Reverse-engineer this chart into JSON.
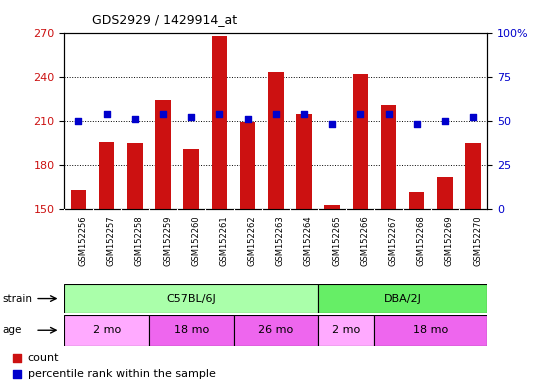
{
  "title": "GDS2929 / 1429914_at",
  "samples": [
    "GSM152256",
    "GSM152257",
    "GSM152258",
    "GSM152259",
    "GSM152260",
    "GSM152261",
    "GSM152262",
    "GSM152263",
    "GSM152264",
    "GSM152265",
    "GSM152266",
    "GSM152267",
    "GSM152268",
    "GSM152269",
    "GSM152270"
  ],
  "counts": [
    163,
    196,
    195,
    224,
    191,
    268,
    209,
    243,
    215,
    153,
    242,
    221,
    162,
    172,
    195
  ],
  "percentile_ranks": [
    50,
    54,
    51,
    54,
    52,
    54,
    51,
    54,
    54,
    48,
    54,
    54,
    48,
    50,
    52
  ],
  "ymin": 150,
  "ymax": 270,
  "yticks": [
    150,
    180,
    210,
    240,
    270
  ],
  "right_yticks": [
    0,
    25,
    50,
    75,
    100
  ],
  "strain_groups": [
    {
      "label": "C57BL/6J",
      "start": 0,
      "end": 9,
      "color": "#aaffaa"
    },
    {
      "label": "DBA/2J",
      "start": 9,
      "end": 15,
      "color": "#66ee66"
    }
  ],
  "age_groups": [
    {
      "label": "2 mo",
      "start": 0,
      "end": 3,
      "color": "#ffaaff"
    },
    {
      "label": "18 mo",
      "start": 3,
      "end": 6,
      "color": "#ee66ee"
    },
    {
      "label": "26 mo",
      "start": 6,
      "end": 9,
      "color": "#ee66ee"
    },
    {
      "label": "2 mo",
      "start": 9,
      "end": 11,
      "color": "#ffaaff"
    },
    {
      "label": "18 mo",
      "start": 11,
      "end": 15,
      "color": "#ee66ee"
    }
  ],
  "bar_color": "#cc1111",
  "dot_color": "#0000cc",
  "plot_bg_color": "#ffffff",
  "tick_label_color_left": "#cc1111",
  "tick_label_color_right": "#0000cc",
  "xtick_area_color": "#cccccc",
  "legend_bar_color": "#cc1111",
  "legend_dot_color": "#0000cc"
}
